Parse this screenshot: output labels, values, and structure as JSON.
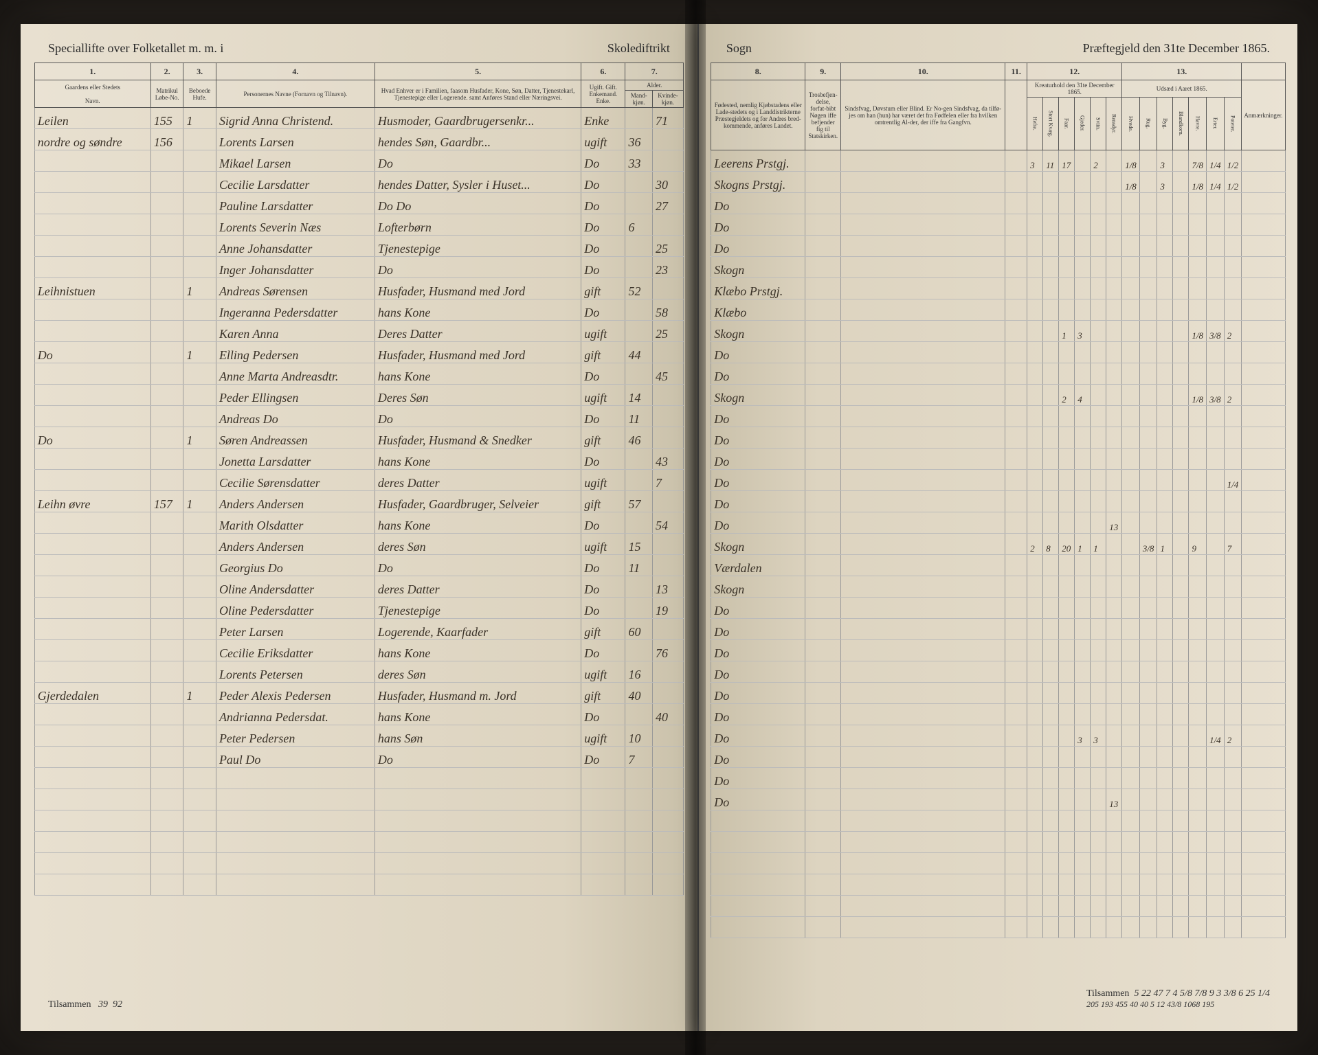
{
  "left_header": {
    "title_left": "Speciallifte over Folketallet m. m. i",
    "title_right": "Skolediftrikt"
  },
  "right_header": {
    "title_left": "Sogn",
    "title_right": "Præftegjeld den 31te December 1865."
  },
  "left_columns": {
    "c1": "1.",
    "c2": "2.",
    "c3": "3.",
    "c4": "4.",
    "c5": "5.",
    "c6": "6.",
    "c7": "7.",
    "h1": "Gaardens eller Stedets",
    "h1b": "Navn.",
    "h2": "Matrikul Løbe-No.",
    "h3": "Beboede Hufe.",
    "h4": "Personernes Navne (Fornavn og Tilnavn).",
    "h5": "Hvad Enhver er i Familien, faasom Husfader, Kone, Søn, Datter, Tjenestekarl, Tjenestepige eller Logerende. samt Anføres Stand eller Næringsvei.",
    "h6": "Ugift. Gift. Enkemand. Enke.",
    "h7a": "Alder.",
    "h7b": "Mand-kjøn.",
    "h7c": "Kvinde-kjøn."
  },
  "right_columns": {
    "c8": "8.",
    "c9": "9.",
    "c10": "10.",
    "c11": "11.",
    "c12": "12.",
    "c13": "13.",
    "h8": "Fødested, nemlig Kjøbstadens eller Lade-stedets og i Landdistrikterne Præstegjeldets og for Andres bred-kommende, anføres Landet.",
    "h9": "Trosbefjen-delse, forfat-bibt Nøgen iffe befjender fig til Statskirken.",
    "h10": "Sindsfvag, Døvstum eller Blind. Er No-gen Sindsfvag, da tilfø-jes om han (hun) har været det fra Fødfelen eller fra hvilken omtrentlig Al-der, der iffe fra Gangfvn.",
    "h11": "",
    "h12": "Kreaturhold den 31te December 1865.",
    "h13": "Udsæd i Aaret 1865.",
    "h14": "Anmærkninger.",
    "sub12": [
      "Hefte.",
      "Stort Kvæg.",
      "Faar.",
      "Gjeder.",
      "Sviin.",
      "Rensdyr."
    ],
    "sub13": [
      "Hvede.",
      "Rug.",
      "Byg.",
      "Blandkorn.",
      "Havre.",
      "Erter.",
      "Poteter."
    ]
  },
  "rows": [
    {
      "place": "Leilen",
      "mno": "155",
      "hno": "1",
      "name": "Sigrid Anna Christend.",
      "status": "Husmoder, Gaardbrugersenkr...",
      "civil": "Enke",
      "m": "",
      "k": "71",
      "birth": "Leerens Prstgj.",
      "c12": [
        "3",
        "11",
        "17",
        "",
        "2",
        "",
        "1/8",
        "",
        "3",
        "",
        "7/8",
        "1/4",
        "1/2"
      ]
    },
    {
      "place": "nordre og søndre",
      "mno": "156",
      "hno": "",
      "name": "Lorents Larsen",
      "status": "hendes Søn, Gaardbr...",
      "civil": "ugift",
      "m": "36",
      "k": "",
      "birth": "Skogns Prstgj.",
      "c12": [
        "",
        "",
        "",
        "",
        "",
        "",
        "1/8",
        "",
        "3",
        "",
        "1/8",
        "1/4",
        "1/2"
      ]
    },
    {
      "place": "",
      "mno": "",
      "hno": "",
      "name": "Mikael Larsen",
      "status": "Do",
      "civil": "Do",
      "m": "33",
      "k": "",
      "birth": "Do",
      "c12": []
    },
    {
      "place": "",
      "mno": "",
      "hno": "",
      "name": "Cecilie Larsdatter",
      "status": "hendes Datter, Sysler i Huset...",
      "civil": "Do",
      "m": "",
      "k": "30",
      "birth": "Do",
      "c12": []
    },
    {
      "place": "",
      "mno": "",
      "hno": "",
      "name": "Pauline Larsdatter",
      "status": "Do  Do",
      "civil": "Do",
      "m": "",
      "k": "27",
      "birth": "Do",
      "c12": []
    },
    {
      "place": "",
      "mno": "",
      "hno": "",
      "name": "Lorents Severin Næs",
      "status": "Lofterbørn",
      "civil": "Do",
      "m": "6",
      "k": "",
      "birth": "Skogn",
      "c12": []
    },
    {
      "place": "",
      "mno": "",
      "hno": "",
      "name": "Anne Johansdatter",
      "status": "Tjenestepige",
      "civil": "Do",
      "m": "",
      "k": "25",
      "birth": "Klæbo Prstgj.",
      "c12": []
    },
    {
      "place": "",
      "mno": "",
      "hno": "",
      "name": "Inger Johansdatter",
      "status": "Do",
      "civil": "Do",
      "m": "",
      "k": "23",
      "birth": "Klæbo",
      "c12": []
    },
    {
      "place": "Leihnistuen",
      "mno": "",
      "hno": "1",
      "name": "Andreas Sørensen",
      "status": "Husfader, Husmand med Jord",
      "civil": "gift",
      "m": "52",
      "k": "",
      "birth": "Skogn",
      "c12": [
        "",
        "",
        "1",
        "3",
        "",
        "",
        "",
        "",
        "",
        "",
        "1/8",
        "3/8",
        "2"
      ]
    },
    {
      "place": "",
      "mno": "",
      "hno": "",
      "name": "Ingeranna Pedersdatter",
      "status": "hans Kone",
      "civil": "Do",
      "m": "",
      "k": "58",
      "birth": "Do",
      "c12": []
    },
    {
      "place": "",
      "mno": "",
      "hno": "",
      "name": "Karen Anna",
      "status": "Deres Datter",
      "civil": "ugift",
      "m": "",
      "k": "25",
      "birth": "Do",
      "c12": []
    },
    {
      "place": "Do",
      "mno": "",
      "hno": "1",
      "name": "Elling Pedersen",
      "status": "Husfader, Husmand med Jord",
      "civil": "gift",
      "m": "44",
      "k": "",
      "birth": "Skogn",
      "c12": [
        "",
        "",
        "2",
        "4",
        "",
        "",
        "",
        "",
        "",
        "",
        "1/8",
        "3/8",
        "2"
      ]
    },
    {
      "place": "",
      "mno": "",
      "hno": "",
      "name": "Anne Marta Andreasdtr.",
      "status": "hans Kone",
      "civil": "Do",
      "m": "",
      "k": "45",
      "birth": "Do",
      "c12": []
    },
    {
      "place": "",
      "mno": "",
      "hno": "",
      "name": "Peder Ellingsen",
      "status": "Deres Søn",
      "civil": "ugift",
      "m": "14",
      "k": "",
      "birth": "Do",
      "c12": []
    },
    {
      "place": "",
      "mno": "",
      "hno": "",
      "name": "Andreas Do",
      "status": "Do",
      "civil": "Do",
      "m": "11",
      "k": "",
      "birth": "Do",
      "c12": []
    },
    {
      "place": "Do",
      "mno": "",
      "hno": "1",
      "name": "Søren Andreassen",
      "status": "Husfader, Husmand & Snedker",
      "civil": "gift",
      "m": "46",
      "k": "",
      "birth": "Do",
      "c12": [
        "",
        "",
        "",
        "",
        "",
        "",
        "",
        "",
        "",
        "",
        "",
        "",
        "1/4"
      ]
    },
    {
      "place": "",
      "mno": "",
      "hno": "",
      "name": "Jonetta Larsdatter",
      "status": "hans Kone",
      "civil": "Do",
      "m": "",
      "k": "43",
      "birth": "Do",
      "c12": []
    },
    {
      "place": "",
      "mno": "",
      "hno": "",
      "name": "Cecilie Sørensdatter",
      "status": "deres Datter",
      "civil": "ugift",
      "m": "",
      "k": "7",
      "birth": "Do",
      "c12": [
        "",
        "",
        "",
        "",
        "",
        "13"
      ]
    },
    {
      "place": "Leihn øvre",
      "mno": "157",
      "hno": "1",
      "name": "Anders Andersen",
      "status": "Husfader, Gaardbruger, Selveier",
      "civil": "gift",
      "m": "57",
      "k": "",
      "birth": "Skogn",
      "c12": [
        "2",
        "8",
        "20",
        "1",
        "1",
        "",
        "",
        "3/8",
        "1",
        "",
        "9",
        "",
        "7"
      ]
    },
    {
      "place": "",
      "mno": "",
      "hno": "",
      "name": "Marith Olsdatter",
      "status": "hans Kone",
      "civil": "Do",
      "m": "",
      "k": "54",
      "birth": "Værdalen",
      "c12": []
    },
    {
      "place": "",
      "mno": "",
      "hno": "",
      "name": "Anders Andersen",
      "status": "deres Søn",
      "civil": "ugift",
      "m": "15",
      "k": "",
      "birth": "Skogn",
      "c12": []
    },
    {
      "place": "",
      "mno": "",
      "hno": "",
      "name": "Georgius Do",
      "status": "Do",
      "civil": "Do",
      "m": "11",
      "k": "",
      "birth": "Do",
      "c12": []
    },
    {
      "place": "",
      "mno": "",
      "hno": "",
      "name": "Oline Andersdatter",
      "status": "deres Datter",
      "civil": "Do",
      "m": "",
      "k": "13",
      "birth": "Do",
      "c12": []
    },
    {
      "place": "",
      "mno": "",
      "hno": "",
      "name": "Oline Pedersdatter",
      "status": "Tjenestepige",
      "civil": "Do",
      "m": "",
      "k": "19",
      "birth": "Do",
      "c12": []
    },
    {
      "place": "",
      "mno": "",
      "hno": "",
      "name": "Peter Larsen",
      "status": "Logerende, Kaarfader",
      "civil": "gift",
      "m": "60",
      "k": "",
      "birth": "Do",
      "c12": []
    },
    {
      "place": "",
      "mno": "",
      "hno": "",
      "name": "Cecilie Eriksdatter",
      "status": "hans Kone",
      "civil": "Do",
      "m": "",
      "k": "76",
      "birth": "Do",
      "c12": []
    },
    {
      "place": "",
      "mno": "",
      "hno": "",
      "name": "Lorents Petersen",
      "status": "deres Søn",
      "civil": "ugift",
      "m": "16",
      "k": "",
      "birth": "Do",
      "c12": []
    },
    {
      "place": "Gjerdedalen",
      "mno": "",
      "hno": "1",
      "name": "Peder Alexis Pedersen",
      "status": "Husfader, Husmand m. Jord",
      "civil": "gift",
      "m": "40",
      "k": "",
      "birth": "Do",
      "c12": [
        "",
        "",
        "",
        "3",
        "3",
        "",
        "",
        "",
        "",
        "",
        "",
        "1/4",
        "2"
      ]
    },
    {
      "place": "",
      "mno": "",
      "hno": "",
      "name": "Andrianna Pedersdat.",
      "status": "hans Kone",
      "civil": "Do",
      "m": "",
      "k": "40",
      "birth": "Do",
      "c12": []
    },
    {
      "place": "",
      "mno": "",
      "hno": "",
      "name": "Peter Pedersen",
      "status": "hans Søn",
      "civil": "ugift",
      "m": "10",
      "k": "",
      "birth": "Do",
      "c12": []
    },
    {
      "place": "",
      "mno": "",
      "hno": "",
      "name": "Paul Do",
      "status": "Do",
      "civil": "Do",
      "m": "7",
      "k": "",
      "birth": "Do",
      "c12": [
        "",
        "",
        "",
        "",
        "",
        "13"
      ]
    }
  ],
  "totals_left": {
    "label": "Tilsammen",
    "mno": "39",
    "hno": "92"
  },
  "totals_right": {
    "label": "Tilsammen",
    "values": [
      "5",
      "22",
      "47",
      "7",
      "4",
      "",
      "5/8",
      "",
      "7/8",
      "9",
      "3 3/8",
      "6",
      "25",
      "1/4"
    ],
    "values2": [
      "205",
      "193",
      "455",
      "40",
      "40",
      "",
      "5",
      "12",
      "43/8",
      "",
      "1068",
      "",
      "195"
    ]
  }
}
